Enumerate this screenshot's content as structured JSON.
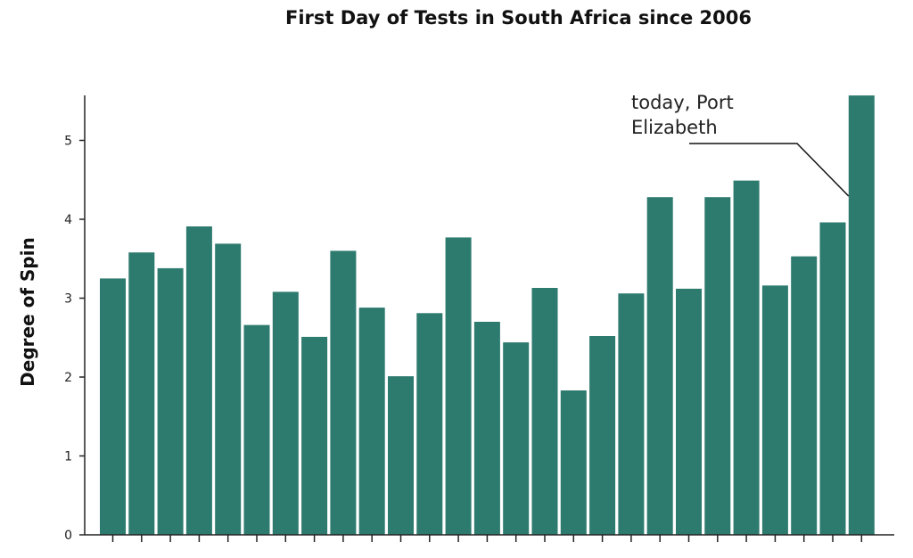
{
  "chart_data": {
    "type": "bar",
    "title": "First Day of Tests in South Africa since 2006",
    "xlabel": "",
    "ylabel": "Degree of Spin",
    "ylim": [
      0,
      5.6
    ],
    "yticks": [
      0,
      1,
      2,
      3,
      4,
      5
    ],
    "grid": false,
    "legend": "none",
    "bar_color": "#2d7a6e",
    "categories": [
      "",
      "",
      "",
      "",
      "",
      "",
      "",
      "",
      "",
      "",
      "",
      "",
      "",
      "",
      "",
      "",
      "",
      "",
      "",
      "",
      "",
      "",
      "",
      "",
      "",
      "",
      ""
    ],
    "values": [
      3.25,
      3.58,
      3.38,
      3.91,
      3.69,
      2.66,
      3.08,
      2.51,
      3.6,
      2.88,
      2.01,
      2.81,
      3.77,
      2.7,
      2.44,
      3.13,
      1.83,
      2.52,
      3.06,
      4.28,
      3.12,
      4.28,
      4.49,
      3.16,
      3.53,
      3.96,
      5.57
    ],
    "annotations": [
      {
        "text_lines": [
          "today, Port",
          "Elizabeth"
        ],
        "target_index": 26
      }
    ]
  }
}
